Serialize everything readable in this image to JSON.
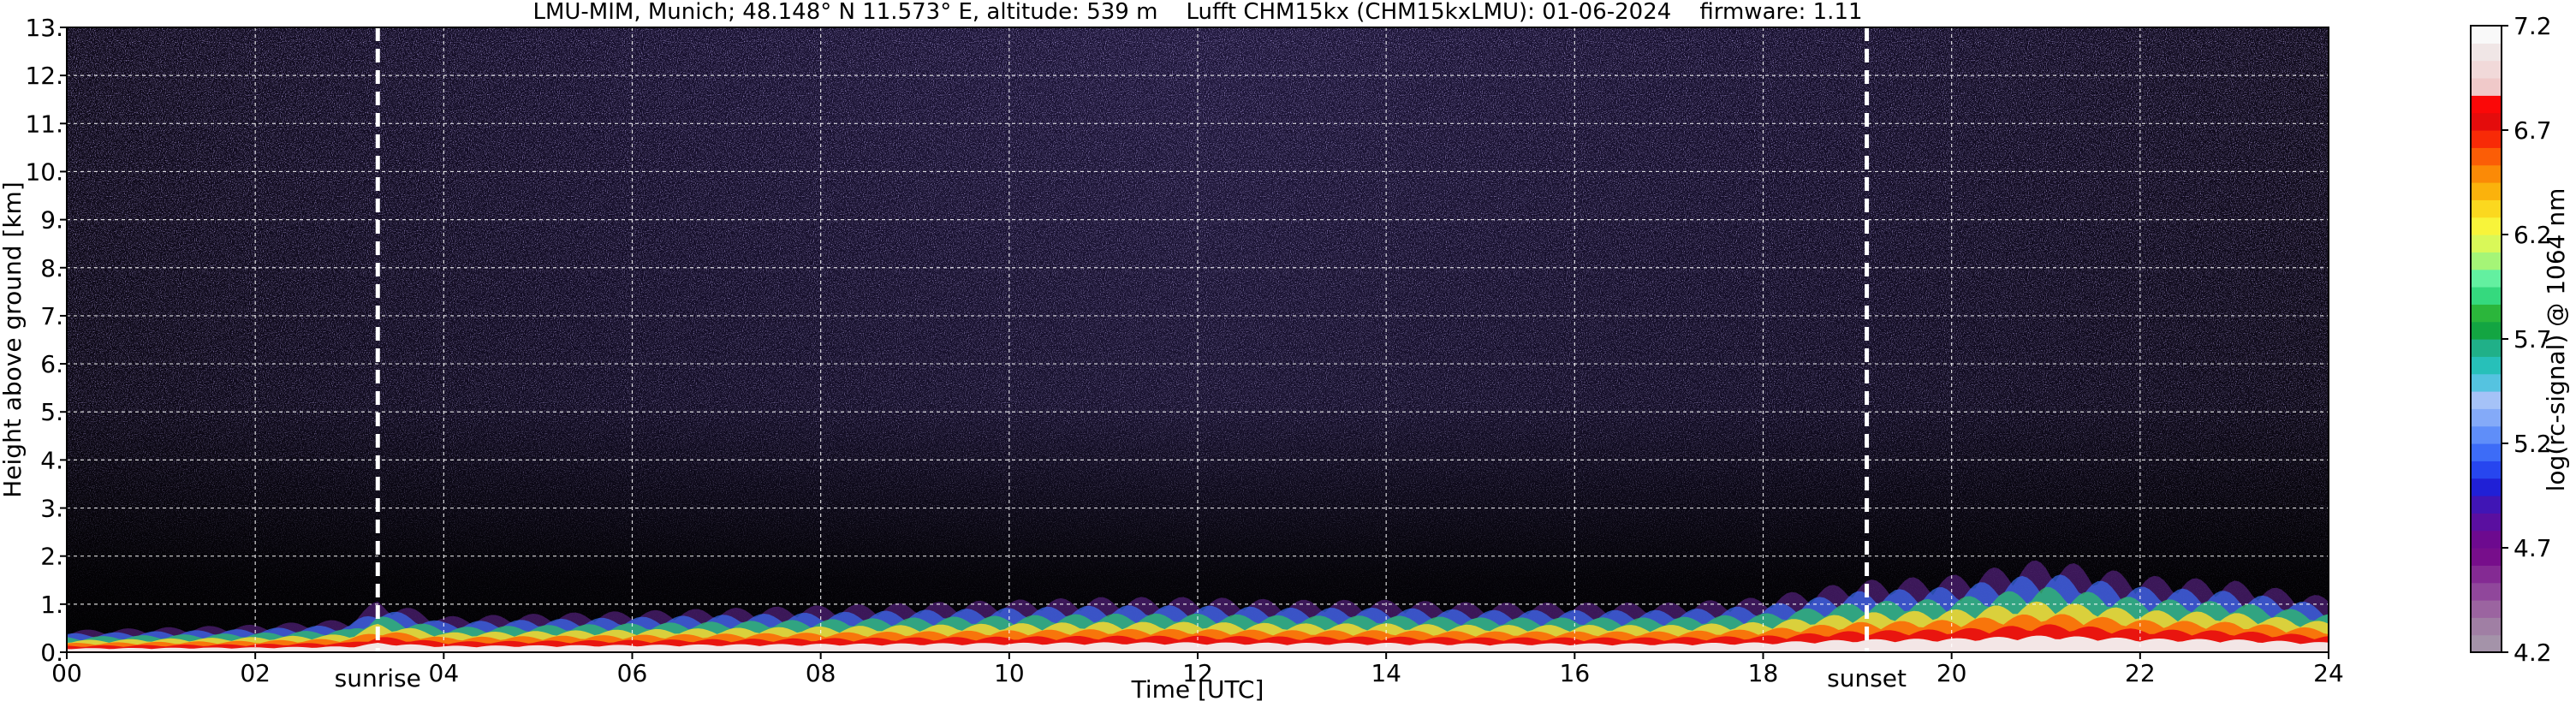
{
  "chart_data": {
    "type": "heatmap",
    "title": "LMU-MIM, Munich; 48.148° N 11.573° E, altitude: 539 m    Lufft CHM15kx (CHM15kxLMU): 01-06-2024    firmware: 1.11",
    "xlabel": "Time [UTC]",
    "ylabel": "Height above ground [km]",
    "xlim": [
      0,
      24
    ],
    "ylim": [
      0,
      13
    ],
    "x_ticks": [
      "00",
      "02",
      "04",
      "06",
      "08",
      "10",
      "12",
      "14",
      "16",
      "18",
      "20",
      "22",
      "24"
    ],
    "y_ticks": [
      "0.",
      "1.",
      "2.",
      "3.",
      "4.",
      "5.",
      "6.",
      "7.",
      "8.",
      "9.",
      "10.",
      "11.",
      "12.",
      "13."
    ],
    "grid": true,
    "colorbar": {
      "label": "log(rc-signal) @ 1064 nm",
      "range": [
        4.2,
        7.2
      ],
      "ticks": [
        "4.2",
        "4.7",
        "5.2",
        "5.7",
        "6.2",
        "6.7",
        "7.2"
      ],
      "colors": [
        "#a493a9",
        "#a07fa4",
        "#9b64a0",
        "#90479b",
        "#842a93",
        "#770e8b",
        "#6d0a8f",
        "#5a0fa0",
        "#4015b5",
        "#2020d6",
        "#2746ef",
        "#3d6cf7",
        "#5f8ef9",
        "#84aaf8",
        "#a5c2f7",
        "#55c3e0",
        "#27c0b9",
        "#20b088",
        "#13a542",
        "#2bb63b",
        "#35d97e",
        "#63f0a0",
        "#a5f577",
        "#d9f858",
        "#f8f43a",
        "#fbd81f",
        "#fbb20c",
        "#fb8a06",
        "#fb5d06",
        "#f82a07",
        "#e40c0c",
        "#fb0808",
        "#f0c9c9",
        "#f1d9d9",
        "#f0e6e6",
        "#f9f9f9"
      ]
    },
    "vertical_lines": [
      {
        "x": 3.3,
        "label": "sunrise"
      },
      {
        "x": 19.1,
        "label": "sunset"
      }
    ],
    "boundary_layer_top_km": [
      [
        0,
        0.4
      ],
      [
        1,
        0.45
      ],
      [
        2,
        0.5
      ],
      [
        3,
        0.6
      ],
      [
        3.3,
        0.95
      ],
      [
        4,
        0.65
      ],
      [
        5,
        0.7
      ],
      [
        6,
        0.75
      ],
      [
        7,
        0.8
      ],
      [
        8,
        0.85
      ],
      [
        9,
        0.9
      ],
      [
        10,
        0.95
      ],
      [
        11,
        1.0
      ],
      [
        12,
        1.0
      ],
      [
        13,
        0.95
      ],
      [
        14,
        0.95
      ],
      [
        15,
        0.9
      ],
      [
        16,
        0.9
      ],
      [
        17,
        0.9
      ],
      [
        18,
        1.0
      ],
      [
        19,
        1.3
      ],
      [
        20,
        1.4
      ],
      [
        21,
        1.7
      ],
      [
        22,
        1.4
      ],
      [
        23,
        1.3
      ],
      [
        24,
        1.0
      ]
    ]
  }
}
